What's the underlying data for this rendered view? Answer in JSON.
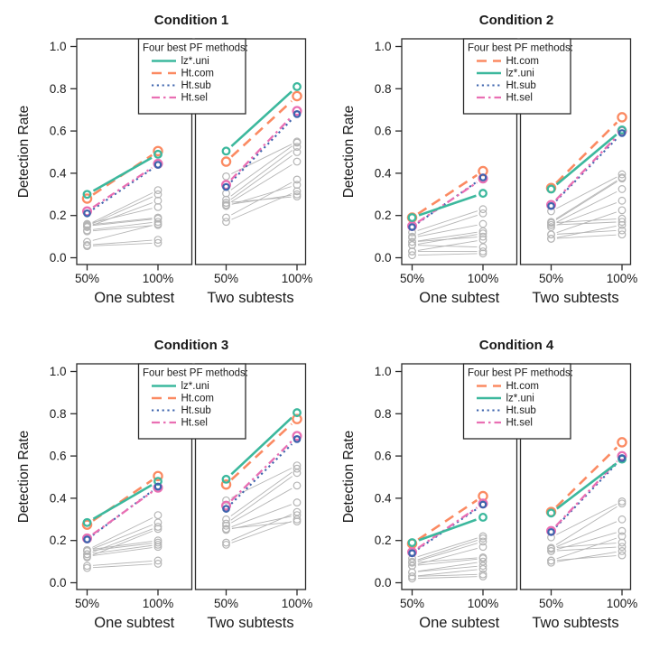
{
  "figure": {
    "background": "#ffffff",
    "text_color": "#1a1a1a",
    "panel_border_color": "#2b2b2b",
    "gray_series_color": "#b5b5b5"
  },
  "methods": {
    "lz_uni": {
      "label": "lz*.uni",
      "color": "#3cb89d",
      "dash": "solid"
    },
    "ht_com": {
      "label": "Ht.com",
      "color": "#fb8a62",
      "dash": "longdash"
    },
    "ht_sub": {
      "label": "Ht.sub",
      "color": "#3e64ad",
      "dash": "dotted"
    },
    "ht_sel": {
      "label": "Ht.sel",
      "color": "#e96fb3",
      "dash": "dashdot"
    }
  },
  "chart_data": {
    "type": "line",
    "ylabel": "Detection Rate",
    "ylim": [
      0.0,
      1.0
    ],
    "yticks": [
      0.0,
      0.2,
      0.4,
      0.6,
      0.8,
      1.0
    ],
    "x_categories": [
      "50%",
      "100%"
    ],
    "legend_title": "Four best PF methods:",
    "grid": false,
    "conditions": [
      {
        "title": "Condition 1",
        "legend_order": [
          "lz_uni",
          "ht_com",
          "ht_sub",
          "ht_sel"
        ],
        "panels": [
          {
            "caption": "One subtest",
            "series": {
              "lz_uni": [
                0.3,
                0.49
              ],
              "ht_com": [
                0.28,
                0.505
              ],
              "ht_sub": [
                0.21,
                0.44
              ],
              "ht_sel": [
                0.22,
                0.445
              ]
            },
            "gray_pairs": [
              [
                0.155,
                0.32
              ],
              [
                0.15,
                0.3
              ],
              [
                0.145,
                0.27
              ],
              [
                0.16,
                0.24
              ],
              [
                0.155,
                0.19
              ],
              [
                0.15,
                0.185
              ],
              [
                0.13,
                0.17
              ],
              [
                0.125,
                0.155
              ],
              [
                0.075,
                0.16
              ],
              [
                0.06,
                0.085
              ],
              [
                0.055,
                0.07
              ]
            ]
          },
          {
            "caption": "Two subtests",
            "series": {
              "lz_uni": [
                0.505,
                0.81
              ],
              "ht_com": [
                0.455,
                0.765
              ],
              "ht_sub": [
                0.335,
                0.68
              ],
              "ht_sel": [
                0.345,
                0.695
              ]
            },
            "gray_pairs": [
              [
                0.385,
                0.55
              ],
              [
                0.305,
                0.545
              ],
              [
                0.275,
                0.525
              ],
              [
                0.26,
                0.5
              ],
              [
                0.25,
                0.455
              ],
              [
                0.19,
                0.37
              ],
              [
                0.245,
                0.345
              ],
              [
                0.17,
                0.315
              ],
              [
                0.25,
                0.3
              ],
              [
                0.26,
                0.29
              ]
            ]
          }
        ]
      },
      {
        "title": "Condition 2",
        "legend_order": [
          "ht_com",
          "lz_uni",
          "ht_sub",
          "ht_sel"
        ],
        "panels": [
          {
            "caption": "One subtest",
            "series": {
              "ht_com": [
                0.19,
                0.41
              ],
              "lz_uni": [
                0.19,
                0.305
              ],
              "ht_sub": [
                0.145,
                0.38
              ],
              "ht_sel": [
                0.15,
                0.375
              ]
            },
            "gray_pairs": [
              [
                0.12,
                0.23
              ],
              [
                0.1,
                0.21
              ],
              [
                0.095,
                0.16
              ],
              [
                0.075,
                0.125
              ],
              [
                0.06,
                0.115
              ],
              [
                0.075,
                0.1
              ],
              [
                0.03,
                0.085
              ],
              [
                0.06,
                0.05
              ],
              [
                0.03,
                0.03
              ],
              [
                0.012,
                0.02
              ]
            ]
          },
          {
            "caption": "Two subtests",
            "series": {
              "ht_com": [
                0.33,
                0.665
              ],
              "lz_uni": [
                0.325,
                0.605
              ],
              "ht_sub": [
                0.245,
                0.59
              ],
              "ht_sel": [
                0.25,
                0.6
              ]
            },
            "gray_pairs": [
              [
                0.22,
                0.395
              ],
              [
                0.17,
                0.38
              ],
              [
                0.165,
                0.375
              ],
              [
                0.155,
                0.325
              ],
              [
                0.145,
                0.27
              ],
              [
                0.11,
                0.225
              ],
              [
                0.165,
                0.185
              ],
              [
                0.155,
                0.17
              ],
              [
                0.09,
                0.155
              ],
              [
                0.11,
                0.13
              ],
              [
                0.09,
                0.11
              ]
            ]
          }
        ]
      },
      {
        "title": "Condition 3",
        "legend_order": [
          "lz_uni",
          "ht_com",
          "ht_sub",
          "ht_sel"
        ],
        "panels": [
          {
            "caption": "One subtest",
            "series": {
              "lz_uni": [
                0.285,
                0.48
              ],
              "ht_com": [
                0.275,
                0.505
              ],
              "ht_sub": [
                0.205,
                0.455
              ],
              "ht_sel": [
                0.21,
                0.45
              ]
            },
            "gray_pairs": [
              [
                0.155,
                0.32
              ],
              [
                0.15,
                0.285
              ],
              [
                0.135,
                0.265
              ],
              [
                0.12,
                0.255
              ],
              [
                0.155,
                0.2
              ],
              [
                0.15,
                0.19
              ],
              [
                0.135,
                0.18
              ],
              [
                0.125,
                0.17
              ],
              [
                0.08,
                0.105
              ],
              [
                0.07,
                0.09
              ]
            ]
          },
          {
            "caption": "Two subtests",
            "series": {
              "lz_uni": [
                0.49,
                0.805
              ],
              "ht_com": [
                0.465,
                0.775
              ],
              "ht_sub": [
                0.35,
                0.68
              ],
              "ht_sel": [
                0.365,
                0.695
              ]
            },
            "gray_pairs": [
              [
                0.39,
                0.555
              ],
              [
                0.3,
                0.54
              ],
              [
                0.28,
                0.52
              ],
              [
                0.27,
                0.46
              ],
              [
                0.255,
                0.38
              ],
              [
                0.19,
                0.335
              ],
              [
                0.25,
                0.32
              ],
              [
                0.18,
                0.3
              ],
              [
                0.255,
                0.29
              ]
            ]
          }
        ]
      },
      {
        "title": "Condition 4",
        "legend_order": [
          "ht_com",
          "lz_uni",
          "ht_sub",
          "ht_sel"
        ],
        "panels": [
          {
            "caption": "One subtest",
            "series": {
              "ht_com": [
                0.185,
                0.41
              ],
              "lz_uni": [
                0.19,
                0.31
              ],
              "ht_sub": [
                0.14,
                0.37
              ],
              "ht_sel": [
                0.145,
                0.375
              ]
            },
            "gray_pairs": [
              [
                0.115,
                0.22
              ],
              [
                0.1,
                0.21
              ],
              [
                0.095,
                0.195
              ],
              [
                0.08,
                0.17
              ],
              [
                0.095,
                0.12
              ],
              [
                0.08,
                0.115
              ],
              [
                0.05,
                0.1
              ],
              [
                0.05,
                0.08
              ],
              [
                0.03,
                0.065
              ],
              [
                0.03,
                0.04
              ],
              [
                0.02,
                0.03
              ]
            ]
          },
          {
            "caption": "Two subtests",
            "series": {
              "ht_com": [
                0.335,
                0.665
              ],
              "lz_uni": [
                0.33,
                0.585
              ],
              "ht_sub": [
                0.24,
                0.59
              ],
              "ht_sel": [
                0.245,
                0.6
              ]
            },
            "gray_pairs": [
              [
                0.215,
                0.385
              ],
              [
                0.165,
                0.375
              ],
              [
                0.16,
                0.3
              ],
              [
                0.15,
                0.245
              ],
              [
                0.105,
                0.22
              ],
              [
                0.165,
                0.19
              ],
              [
                0.15,
                0.17
              ],
              [
                0.095,
                0.15
              ],
              [
                0.105,
                0.13
              ]
            ]
          }
        ]
      }
    ]
  }
}
